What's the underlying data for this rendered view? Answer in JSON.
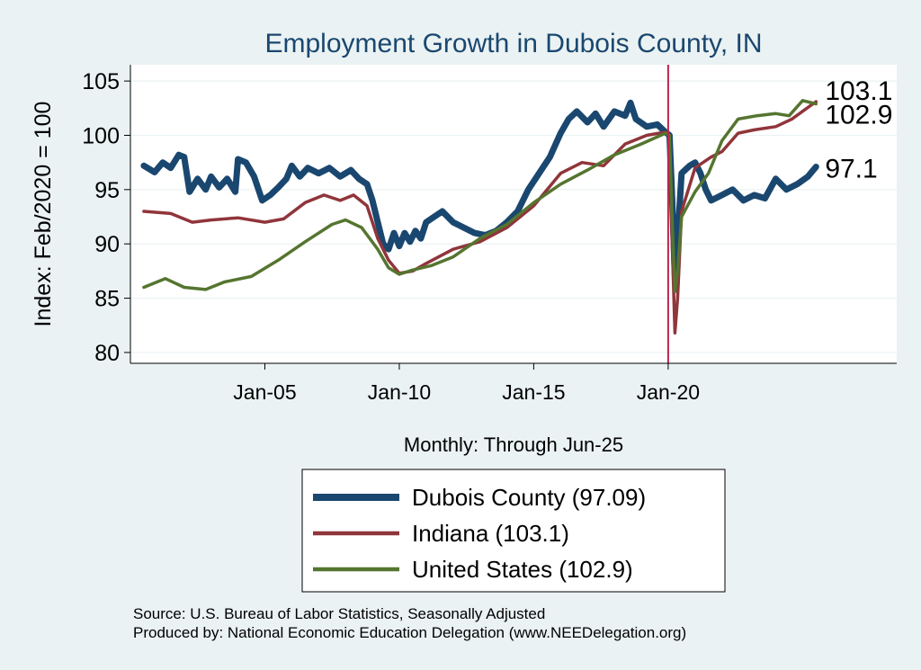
{
  "chart_data": {
    "type": "line",
    "title": "Employment Growth in Dubois  County, IN",
    "xlabel": "Monthly: Through Jun-25",
    "ylabel": "Index: Feb/2020 = 100",
    "xlim": [
      2000.0,
      2028.5
    ],
    "ylim": [
      79,
      106.5
    ],
    "yticks": [
      80,
      85,
      90,
      95,
      100,
      105
    ],
    "xticks": [
      {
        "label": "Jan-05",
        "value": 2005.0
      },
      {
        "label": "Jan-10",
        "value": 2010.0
      },
      {
        "label": "Jan-15",
        "value": 2015.0
      },
      {
        "label": "Jan-20",
        "value": 2020.0
      }
    ],
    "vline": {
      "value": 2020.0,
      "color": "#c0234d"
    },
    "grid": true,
    "series": [
      {
        "name": "Dubois  County",
        "legend": "Dubois  County (97.09)",
        "end_label": "97.1",
        "color": "#1a476f",
        "width": 7,
        "points": [
          [
            2000.5,
            97.2
          ],
          [
            2000.9,
            96.6
          ],
          [
            2001.2,
            97.5
          ],
          [
            2001.5,
            97.0
          ],
          [
            2001.8,
            98.2
          ],
          [
            2002.0,
            98.0
          ],
          [
            2002.2,
            94.8
          ],
          [
            2002.5,
            96.0
          ],
          [
            2002.8,
            95.0
          ],
          [
            2003.0,
            96.2
          ],
          [
            2003.3,
            95.2
          ],
          [
            2003.6,
            96.0
          ],
          [
            2003.9,
            94.8
          ],
          [
            2004.0,
            97.8
          ],
          [
            2004.3,
            97.5
          ],
          [
            2004.6,
            96.2
          ],
          [
            2004.9,
            94.0
          ],
          [
            2005.2,
            94.5
          ],
          [
            2005.5,
            95.2
          ],
          [
            2005.8,
            96.0
          ],
          [
            2006.0,
            97.2
          ],
          [
            2006.3,
            96.2
          ],
          [
            2006.6,
            97.0
          ],
          [
            2007.0,
            96.5
          ],
          [
            2007.4,
            97.0
          ],
          [
            2007.8,
            96.2
          ],
          [
            2008.2,
            96.8
          ],
          [
            2008.5,
            96.0
          ],
          [
            2008.8,
            95.5
          ],
          [
            2009.0,
            94.0
          ],
          [
            2009.2,
            92.0
          ],
          [
            2009.4,
            90.0
          ],
          [
            2009.6,
            89.5
          ],
          [
            2009.8,
            91.0
          ],
          [
            2010.0,
            89.8
          ],
          [
            2010.2,
            91.0
          ],
          [
            2010.4,
            90.2
          ],
          [
            2010.6,
            91.2
          ],
          [
            2010.8,
            90.5
          ],
          [
            2011.0,
            92.0
          ],
          [
            2011.3,
            92.5
          ],
          [
            2011.6,
            93.0
          ],
          [
            2012.0,
            92.0
          ],
          [
            2012.4,
            91.5
          ],
          [
            2012.8,
            91.0
          ],
          [
            2013.2,
            90.8
          ],
          [
            2013.6,
            91.2
          ],
          [
            2014.0,
            92.0
          ],
          [
            2014.4,
            93.0
          ],
          [
            2014.8,
            95.0
          ],
          [
            2015.2,
            96.5
          ],
          [
            2015.6,
            98.0
          ],
          [
            2016.0,
            100.2
          ],
          [
            2016.3,
            101.5
          ],
          [
            2016.6,
            102.2
          ],
          [
            2017.0,
            101.2
          ],
          [
            2017.3,
            102.0
          ],
          [
            2017.6,
            100.8
          ],
          [
            2018.0,
            102.2
          ],
          [
            2018.4,
            101.8
          ],
          [
            2018.6,
            103.0
          ],
          [
            2018.8,
            101.5
          ],
          [
            2019.2,
            100.8
          ],
          [
            2019.6,
            101.0
          ],
          [
            2019.9,
            100.3
          ],
          [
            2020.05,
            100.0
          ],
          [
            2020.15,
            94.0
          ],
          [
            2020.25,
            87.0
          ],
          [
            2020.35,
            90.5
          ],
          [
            2020.5,
            96.5
          ],
          [
            2020.8,
            97.2
          ],
          [
            2021.0,
            97.5
          ],
          [
            2021.2,
            96.5
          ],
          [
            2021.4,
            95.0
          ],
          [
            2021.6,
            94.0
          ],
          [
            2022.0,
            94.5
          ],
          [
            2022.4,
            95.0
          ],
          [
            2022.8,
            94.0
          ],
          [
            2023.2,
            94.5
          ],
          [
            2023.6,
            94.2
          ],
          [
            2024.0,
            96.0
          ],
          [
            2024.4,
            95.0
          ],
          [
            2024.8,
            95.5
          ],
          [
            2025.2,
            96.2
          ],
          [
            2025.5,
            97.1
          ]
        ]
      },
      {
        "name": "Indiana",
        "legend": "Indiana (103.1)",
        "end_label": "103.1",
        "color": "#90353b",
        "width": 3.5,
        "points": [
          [
            2000.5,
            93.0
          ],
          [
            2001.5,
            92.8
          ],
          [
            2002.3,
            92.0
          ],
          [
            2003.0,
            92.2
          ],
          [
            2004.0,
            92.4
          ],
          [
            2005.0,
            92.0
          ],
          [
            2005.7,
            92.3
          ],
          [
            2006.5,
            93.8
          ],
          [
            2007.2,
            94.5
          ],
          [
            2007.8,
            94.0
          ],
          [
            2008.3,
            94.5
          ],
          [
            2008.8,
            93.5
          ],
          [
            2009.2,
            90.5
          ],
          [
            2009.6,
            88.5
          ],
          [
            2010.0,
            87.3
          ],
          [
            2010.5,
            87.5
          ],
          [
            2011.0,
            88.2
          ],
          [
            2012.0,
            89.5
          ],
          [
            2013.0,
            90.2
          ],
          [
            2014.0,
            91.5
          ],
          [
            2015.0,
            93.5
          ],
          [
            2016.0,
            96.5
          ],
          [
            2016.8,
            97.5
          ],
          [
            2017.6,
            97.2
          ],
          [
            2018.4,
            99.2
          ],
          [
            2019.2,
            100.0
          ],
          [
            2019.9,
            100.3
          ],
          [
            2020.05,
            100.0
          ],
          [
            2020.15,
            90.0
          ],
          [
            2020.25,
            81.8
          ],
          [
            2020.35,
            85.0
          ],
          [
            2020.5,
            93.0
          ],
          [
            2021.0,
            97.0
          ],
          [
            2021.6,
            98.0
          ],
          [
            2022.0,
            98.5
          ],
          [
            2022.6,
            100.2
          ],
          [
            2023.2,
            100.5
          ],
          [
            2024.0,
            100.8
          ],
          [
            2024.6,
            101.5
          ],
          [
            2025.5,
            103.1
          ]
        ]
      },
      {
        "name": "United States",
        "legend": "United States (102.9)",
        "end_label": "102.9",
        "color": "#55752f",
        "width": 3.5,
        "points": [
          [
            2000.5,
            86.0
          ],
          [
            2001.3,
            86.8
          ],
          [
            2002.0,
            86.0
          ],
          [
            2002.8,
            85.8
          ],
          [
            2003.5,
            86.5
          ],
          [
            2004.5,
            87.0
          ],
          [
            2005.5,
            88.5
          ],
          [
            2006.5,
            90.2
          ],
          [
            2007.5,
            91.8
          ],
          [
            2008.0,
            92.2
          ],
          [
            2008.6,
            91.5
          ],
          [
            2009.2,
            89.5
          ],
          [
            2009.6,
            87.8
          ],
          [
            2010.0,
            87.2
          ],
          [
            2010.5,
            87.6
          ],
          [
            2011.2,
            88.0
          ],
          [
            2012.0,
            88.8
          ],
          [
            2013.0,
            90.5
          ],
          [
            2014.0,
            91.8
          ],
          [
            2015.0,
            93.8
          ],
          [
            2016.0,
            95.5
          ],
          [
            2017.0,
            96.8
          ],
          [
            2018.0,
            98.2
          ],
          [
            2019.0,
            99.2
          ],
          [
            2019.9,
            100.2
          ],
          [
            2020.05,
            100.0
          ],
          [
            2020.15,
            92.0
          ],
          [
            2020.25,
            85.6
          ],
          [
            2020.35,
            87.5
          ],
          [
            2020.5,
            92.5
          ],
          [
            2021.0,
            94.8
          ],
          [
            2021.5,
            96.5
          ],
          [
            2022.0,
            99.5
          ],
          [
            2022.6,
            101.5
          ],
          [
            2023.3,
            101.8
          ],
          [
            2024.0,
            102.0
          ],
          [
            2024.5,
            101.8
          ],
          [
            2025.0,
            103.2
          ],
          [
            2025.5,
            102.9
          ]
        ]
      }
    ]
  },
  "source_note": "Source: U.S. Bureau of Labor Statistics, Seasonally Adjusted",
  "producer_note": "Produced by: National Economic Education Delegation (www.NEEDelegation.org)"
}
